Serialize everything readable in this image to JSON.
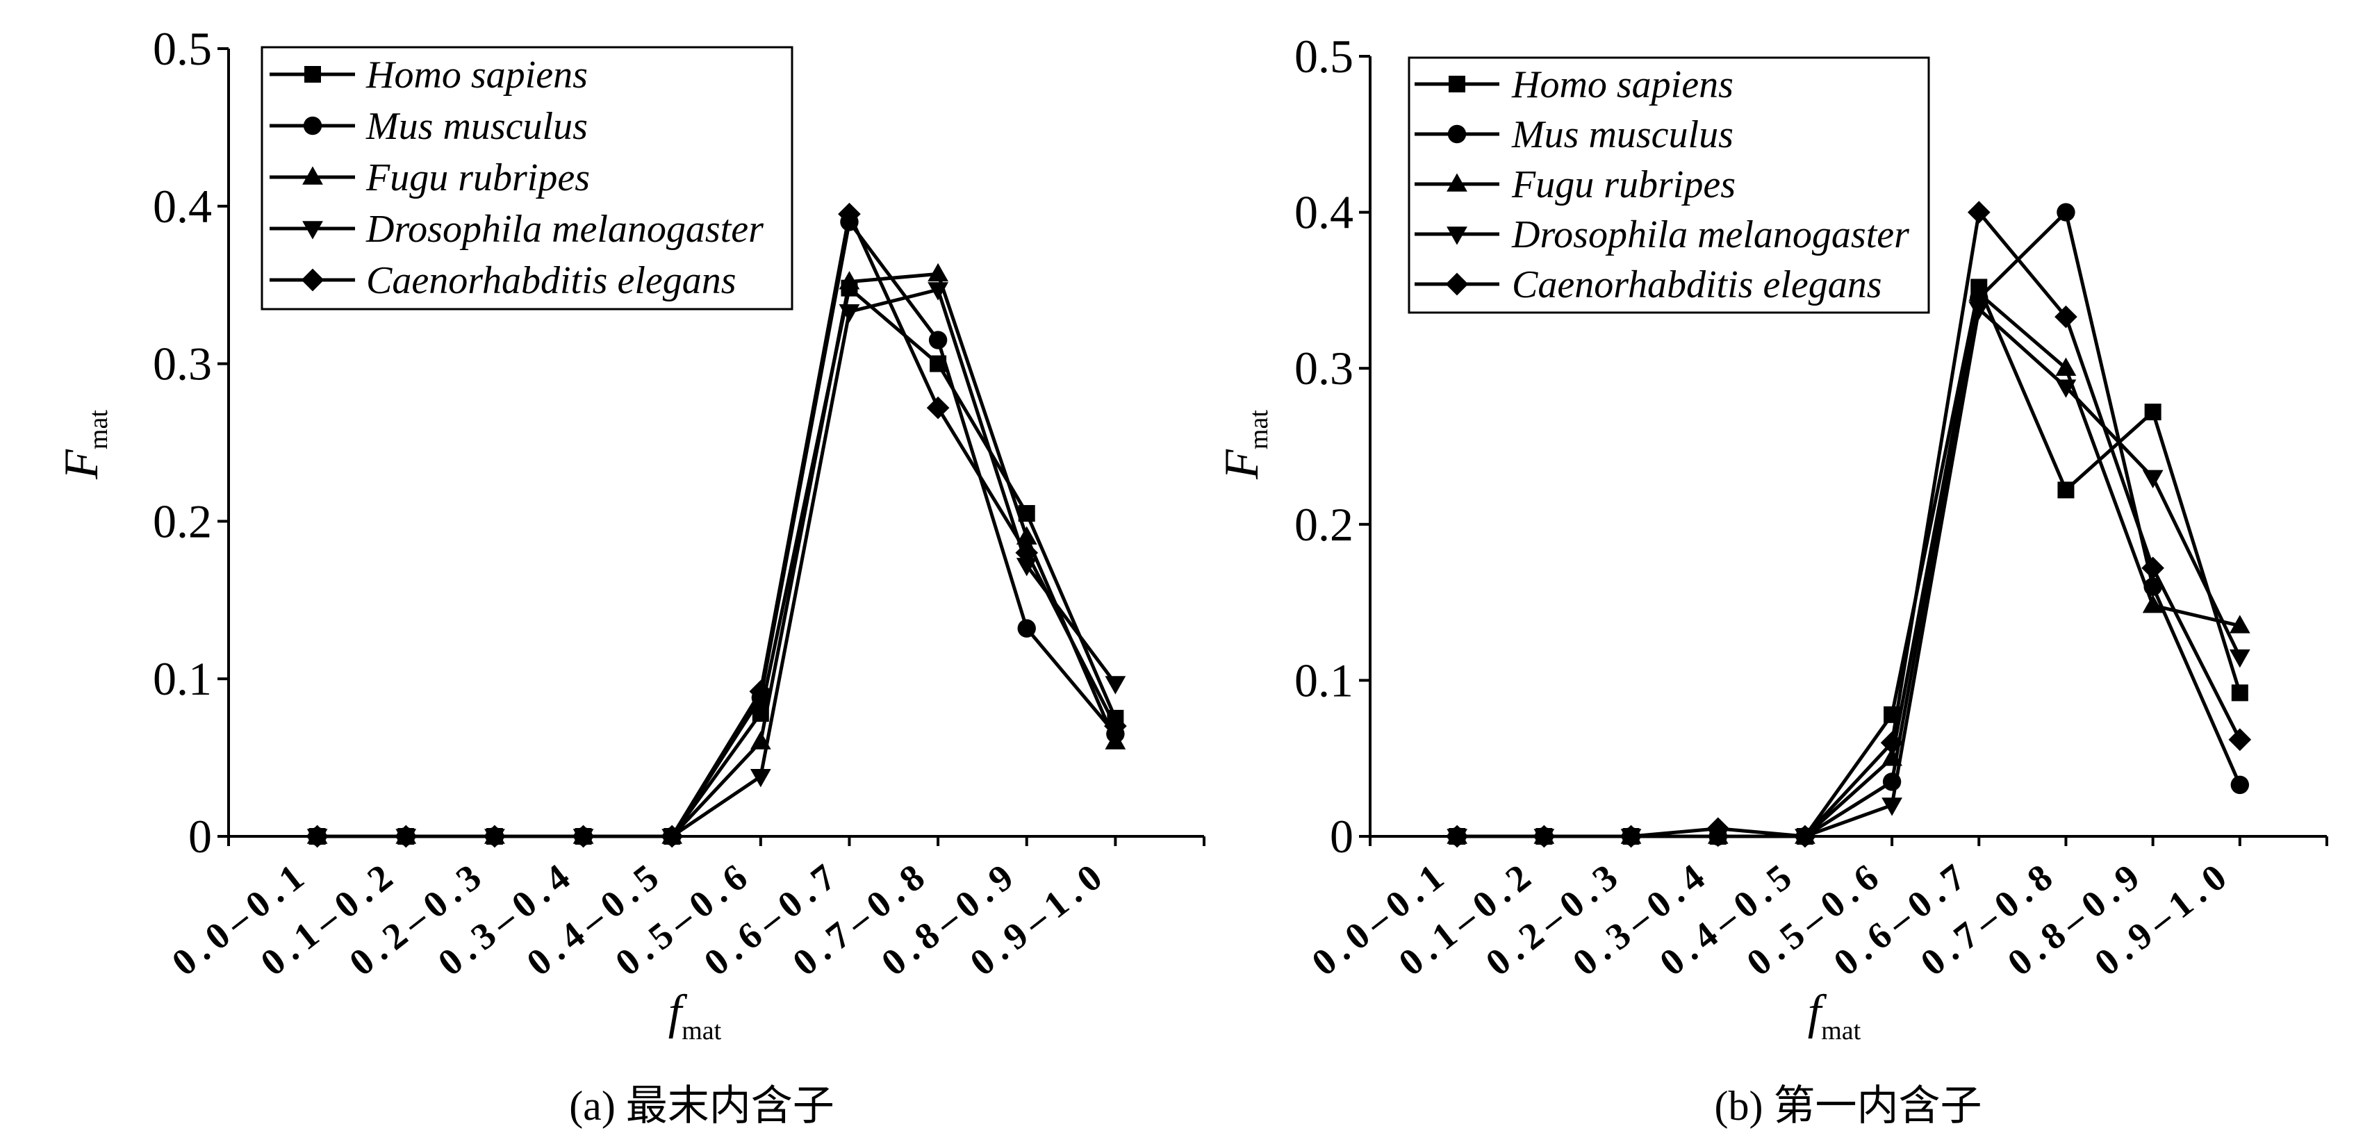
{
  "figure": {
    "background": "#ffffff",
    "ink_color": "#000000"
  },
  "chart_data": [
    {
      "type": "line",
      "caption": "(a) 最末内含子",
      "xlabel": {
        "text": "f",
        "sub": "mat"
      },
      "ylabel": {
        "text": "F",
        "sub": "mat"
      },
      "ylim": [
        0,
        0.5
      ],
      "yticks": [
        "0",
        "0.1",
        "0.2",
        "0.3",
        "0.4",
        "0.5"
      ],
      "grid": false,
      "legend": "top-left",
      "categories": [
        "0.0–0.1",
        "0.1–0.2",
        "0.2–0.3",
        "0.3–0.4",
        "0.4–0.5",
        "0.5–0.6",
        "0.6–0.7",
        "0.7–0.8",
        "0.8–0.9",
        "0.9–1.0"
      ],
      "series": [
        {
          "name": "Homo sapiens",
          "marker": "square",
          "values": [
            0,
            0,
            0,
            0,
            0,
            0.078,
            0.348,
            0.3,
            0.205,
            0.075
          ]
        },
        {
          "name": "Mus musculus",
          "marker": "circle",
          "values": [
            0,
            0,
            0,
            0,
            0,
            0.088,
            0.39,
            0.315,
            0.132,
            0.065
          ]
        },
        {
          "name": "Fugu rubripes",
          "marker": "triangle-up",
          "values": [
            0,
            0,
            0,
            0,
            0,
            0.06,
            0.352,
            0.357,
            0.19,
            0.06
          ]
        },
        {
          "name": "Drosophila melanogaster",
          "marker": "triangle-down",
          "values": [
            0,
            0,
            0,
            0,
            0,
            0.038,
            0.333,
            0.347,
            0.172,
            0.097
          ]
        },
        {
          "name": "Caenorhabditis elegans",
          "marker": "diamond",
          "values": [
            0,
            0,
            0,
            0,
            0,
            0.092,
            0.395,
            0.272,
            0.18,
            0.07
          ]
        }
      ]
    },
    {
      "type": "line",
      "caption": "(b) 第一内含子",
      "xlabel": {
        "text": "f",
        "sub": "mat"
      },
      "ylabel": {
        "text": "F",
        "sub": "mat"
      },
      "ylim": [
        0,
        0.5
      ],
      "yticks": [
        "0",
        "0.1",
        "0.2",
        "0.3",
        "0.4",
        "0.5"
      ],
      "grid": false,
      "legend": "top-left",
      "categories": [
        "0.0–0.1",
        "0.1–0.2",
        "0.2–0.3",
        "0.3–0.4",
        "0.4–0.5",
        "0.5–0.6",
        "0.6–0.7",
        "0.7–0.8",
        "0.8–0.9",
        "0.9–1.0"
      ],
      "series": [
        {
          "name": "Homo sapiens",
          "marker": "square",
          "values": [
            0,
            0,
            0,
            0,
            0,
            0.078,
            0.352,
            0.222,
            0.272,
            0.092
          ]
        },
        {
          "name": "Mus musculus",
          "marker": "circle",
          "values": [
            0,
            0,
            0,
            0,
            0,
            0.035,
            0.345,
            0.4,
            0.16,
            0.033
          ]
        },
        {
          "name": "Fugu rubripes",
          "marker": "triangle-up",
          "values": [
            0,
            0,
            0,
            0,
            0,
            0.05,
            0.348,
            0.3,
            0.148,
            0.135
          ]
        },
        {
          "name": "Drosophila melanogaster",
          "marker": "triangle-down",
          "values": [
            0,
            0,
            0,
            0,
            0,
            0.02,
            0.338,
            0.288,
            0.23,
            0.115
          ]
        },
        {
          "name": "Caenorhabditis elegans",
          "marker": "diamond",
          "values": [
            0,
            0,
            0,
            0.005,
            0,
            0.06,
            0.4,
            0.333,
            0.172,
            0.062
          ]
        }
      ]
    }
  ]
}
